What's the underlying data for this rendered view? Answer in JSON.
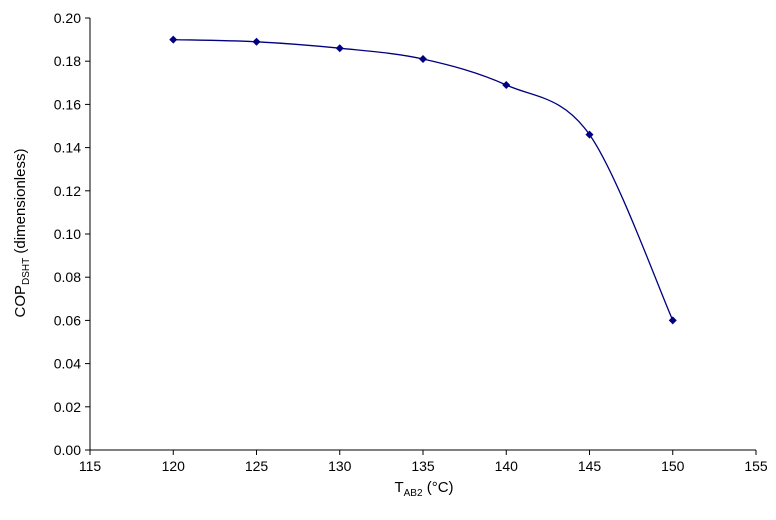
{
  "chart_data": {
    "type": "line",
    "x": [
      120,
      125,
      130,
      135,
      140,
      145,
      150
    ],
    "values": [
      0.19,
      0.189,
      0.186,
      0.181,
      0.169,
      0.146,
      0.06
    ],
    "xlabel": {
      "main": "T",
      "sub": "AB2",
      "rest": " (°C)"
    },
    "ylabel": {
      "main": "COP",
      "sub": "DSHT",
      "rest": " (dimensionless)"
    },
    "xlim": [
      115,
      155
    ],
    "xtick_step": 5,
    "ylim": [
      0.0,
      0.2
    ],
    "ytick_step": 0.02,
    "ytick_decimals": 2,
    "grid": false,
    "legend": "none",
    "marker": "diamond",
    "colors": {
      "line": "#000080",
      "marker": "#000080",
      "axis": "#000000",
      "text": "#000000",
      "background": "#ffffff"
    }
  }
}
